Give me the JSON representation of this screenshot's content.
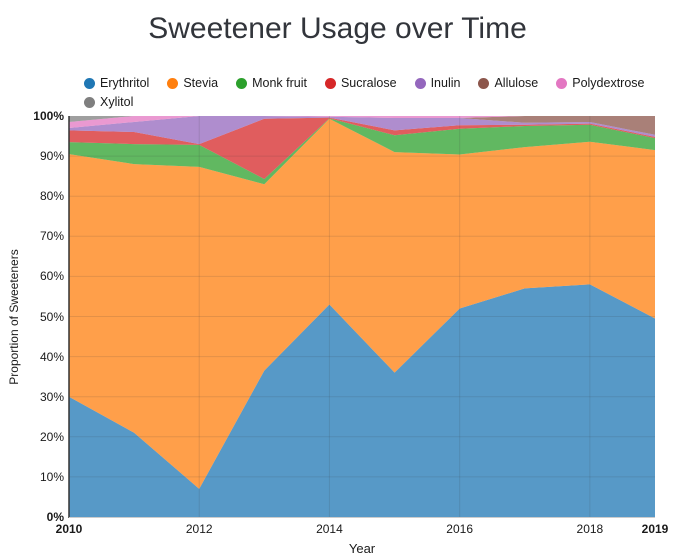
{
  "chart_data": {
    "type": "area",
    "stacked": true,
    "percent_normalized": true,
    "title": "Sweetener Usage over Time",
    "xlabel": "Year",
    "ylabel": "Proportion of Sweeteners",
    "grid": true,
    "legend_position": "top-left",
    "x": [
      2010,
      2011,
      2012,
      2013,
      2014,
      2015,
      2016,
      2017,
      2018,
      2019
    ],
    "xlim": [
      2010,
      2019
    ],
    "ylim": [
      0,
      100
    ],
    "x_ticks": [
      {
        "value": 2010,
        "label": "2010"
      },
      {
        "value": 2012,
        "label": "2012"
      },
      {
        "value": 2014,
        "label": "2014"
      },
      {
        "value": 2016,
        "label": "2016"
      },
      {
        "value": 2018,
        "label": "2018"
      },
      {
        "value": 2019,
        "label": "2019"
      }
    ],
    "y_ticks": [
      {
        "value": 0,
        "label": "0%"
      },
      {
        "value": 10,
        "label": "10%"
      },
      {
        "value": 20,
        "label": "20%"
      },
      {
        "value": 30,
        "label": "30%"
      },
      {
        "value": 40,
        "label": "40%"
      },
      {
        "value": 50,
        "label": "50%"
      },
      {
        "value": 60,
        "label": "60%"
      },
      {
        "value": 70,
        "label": "70%"
      },
      {
        "value": 80,
        "label": "80%"
      },
      {
        "value": 90,
        "label": "90%"
      },
      {
        "value": 100,
        "label": "100%"
      }
    ],
    "series": [
      {
        "name": "Erythritol",
        "color": "#1f77b4",
        "values": [
          30,
          21,
          7,
          36.5,
          53,
          36,
          52,
          57,
          58,
          49.5
        ]
      },
      {
        "name": "Stevia",
        "color": "#ff7f0e",
        "values": [
          60.5,
          67,
          80.3,
          46.5,
          46.3,
          55,
          38.4,
          35.25,
          35.6,
          42
        ]
      },
      {
        "name": "Monk fruit",
        "color": "#2ca02c",
        "values": [
          3,
          5,
          5.5,
          1.3,
          0.1,
          4.2,
          6.4,
          5.25,
          4.2,
          3
        ]
      },
      {
        "name": "Sucralose",
        "color": "#d62728",
        "values": [
          2.9,
          3,
          0.2,
          15,
          0.2,
          1.2,
          0.9,
          0.3,
          0.3,
          0.3
        ]
      },
      {
        "name": "Inulin",
        "color": "#9467bd",
        "values": [
          0.6,
          2.5,
          7,
          0.7,
          0.2,
          3.1,
          1.8,
          0.5,
          0.4,
          0.5
        ]
      },
      {
        "name": "Allulose",
        "color": "#8c564b",
        "values": [
          0,
          0,
          0,
          0,
          0,
          0,
          0,
          1.7,
          1.5,
          4.7
        ]
      },
      {
        "name": "Polydextrose",
        "color": "#e377c2",
        "values": [
          1.5,
          1.5,
          0,
          0,
          0.2,
          0.5,
          0.5,
          0,
          0,
          0
        ]
      },
      {
        "name": "Xylitol",
        "color": "#7f7f7f",
        "values": [
          1.5,
          0,
          0,
          0,
          0,
          0,
          0,
          0,
          0,
          0
        ]
      }
    ],
    "style": {
      "fill_opacity": 0.75,
      "axis_line_color": "#333333",
      "baseline_color": "#cccccc",
      "gridline_color_overlay": "rgba(60,60,60,0.14)"
    }
  }
}
